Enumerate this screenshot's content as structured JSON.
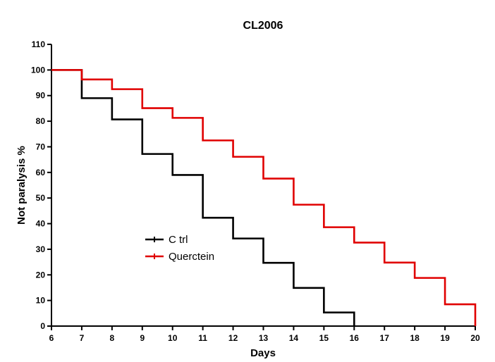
{
  "chart_data": {
    "type": "line",
    "step": true,
    "title": "CL2006",
    "xlabel": "Days",
    "ylabel": "Not paralysis %",
    "xlim": [
      6,
      20
    ],
    "ylim": [
      0,
      110
    ],
    "xticks": [
      6,
      7,
      8,
      9,
      10,
      11,
      12,
      13,
      14,
      15,
      16,
      17,
      18,
      19,
      20
    ],
    "yticks": [
      0,
      10,
      20,
      30,
      40,
      50,
      60,
      70,
      80,
      90,
      100,
      110
    ],
    "grid": false,
    "legend_position": "center-left",
    "series": [
      {
        "name": "C trl",
        "color": "#000000",
        "x": [
          6,
          7,
          8,
          9,
          10,
          11,
          12,
          13,
          14,
          15,
          16
        ],
        "y": [
          100,
          89,
          80.7,
          67.2,
          59,
          42.3,
          34.2,
          24.7,
          14.9,
          5.3,
          0
        ]
      },
      {
        "name": "Querctein",
        "color": "#e00000",
        "x": [
          6,
          7,
          8,
          9,
          10,
          11,
          12,
          13,
          14,
          15,
          16,
          17,
          18,
          19,
          20
        ],
        "y": [
          100,
          96.3,
          92.5,
          85.1,
          81.3,
          72.5,
          66.1,
          57.6,
          47.4,
          38.6,
          32.6,
          24.8,
          18.8,
          8.5,
          0
        ]
      }
    ]
  }
}
